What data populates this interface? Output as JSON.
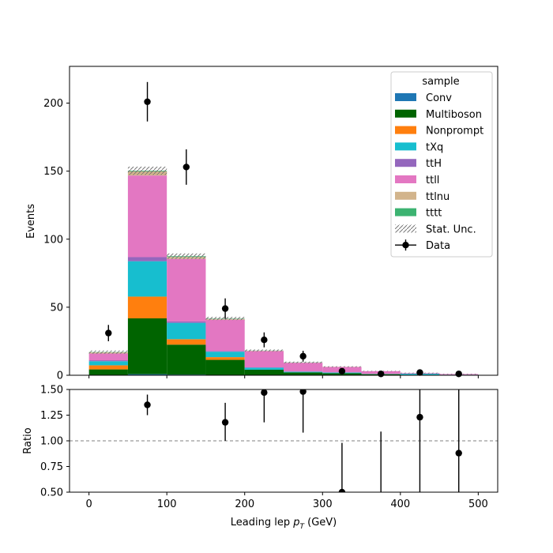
{
  "chart_data": [
    {
      "type": "bar",
      "stacked": true,
      "panel": "main",
      "ylabel": "Events",
      "xlim": [
        -25,
        525
      ],
      "ylim": [
        0,
        227
      ],
      "yticks": [
        0,
        50,
        100,
        150,
        200
      ],
      "bin_edges": [
        0,
        50,
        100,
        150,
        200,
        250,
        300,
        350,
        400,
        450,
        500
      ],
      "legend": {
        "title": "sample",
        "placement": "top-right"
      },
      "series": [
        {
          "name": "Conv",
          "color": "#1f77b4",
          "values": [
            0.3,
            0.8,
            0.5,
            0.3,
            0.1,
            0.1,
            0.0,
            0.0,
            0.0,
            0.0
          ]
        },
        {
          "name": "Multiboson",
          "color": "#006400",
          "values": [
            4,
            41,
            22,
            11,
            4,
            2,
            1.5,
            0.8,
            0.3,
            0.3
          ]
        },
        {
          "name": "Nonprompt",
          "color": "#ff7f0e",
          "values": [
            3,
            16,
            4,
            2,
            0,
            0,
            0,
            0,
            0,
            0
          ]
        },
        {
          "name": "tXq",
          "color": "#17becf",
          "values": [
            3,
            26,
            12,
            4,
            1.5,
            0.5,
            0.5,
            0.2,
            0.8,
            0.1
          ]
        },
        {
          "name": "ttH",
          "color": "#9467bd",
          "values": [
            0.7,
            3,
            1,
            0.5,
            0.2,
            0.1,
            0.1,
            0.0,
            0.0,
            0.0
          ]
        },
        {
          "name": "ttll",
          "color": "#e377c2",
          "values": [
            5,
            60,
            46,
            23,
            12,
            6.5,
            4,
            2,
            0.5,
            0.5
          ]
        },
        {
          "name": "ttlnu",
          "color": "#d2b48c",
          "values": [
            0.8,
            3,
            1.5,
            0.6,
            0.2,
            0.1,
            0.1,
            0.0,
            0.0,
            0.0
          ]
        },
        {
          "name": "tttt",
          "color": "#3cb371",
          "values": [
            0.2,
            0.5,
            0.5,
            0.3,
            0.1,
            0.1,
            0.0,
            0.0,
            0.0,
            0.0
          ]
        }
      ],
      "stat_unc_label": "Stat. Unc.",
      "stat_unc": [
        1.2,
        3.0,
        2.0,
        1.2,
        0.8,
        0.6,
        0.4,
        0.3,
        0.3,
        0.2
      ],
      "data": {
        "name": "Data",
        "x": [
          25,
          75,
          125,
          175,
          225,
          275,
          325,
          375,
          425,
          475
        ],
        "y": [
          31,
          201,
          153,
          49,
          26,
          14,
          3,
          1,
          2,
          1
        ],
        "err": [
          6,
          14.5,
          13,
          7.5,
          5.5,
          4,
          2,
          1.5,
          1.7,
          1.3
        ]
      }
    },
    {
      "type": "scatter",
      "panel": "ratio",
      "xlabel": "Leading lep",
      "xlabel_sub": "T",
      "xlabel_unit": "(GeV)",
      "ylabel": "Ratio",
      "xlim": [
        -25,
        525
      ],
      "ylim": [
        0.5,
        1.5
      ],
      "xticks": [
        0,
        100,
        200,
        300,
        400,
        500
      ],
      "yticks": [
        "0.50",
        "0.75",
        "1.00",
        "1.25",
        "1.50"
      ],
      "reference_line": 1.0,
      "x": [
        25,
        75,
        125,
        175,
        225,
        275,
        325,
        375,
        425,
        475
      ],
      "y": [
        null,
        1.35,
        null,
        1.18,
        1.47,
        1.48,
        0.5,
        null,
        1.23,
        0.88
      ],
      "err_low": [
        null,
        0.1,
        null,
        0.18,
        0.29,
        0.4,
        0.5,
        null,
        0.73,
        0.88
      ],
      "err_high": [
        null,
        0.1,
        null,
        0.19,
        0.3,
        0.4,
        0.48,
        null,
        0.8,
        1.0
      ],
      "err_only": [
        {
          "x": 375,
          "low": 0.5,
          "high": 1.09
        }
      ]
    }
  ]
}
